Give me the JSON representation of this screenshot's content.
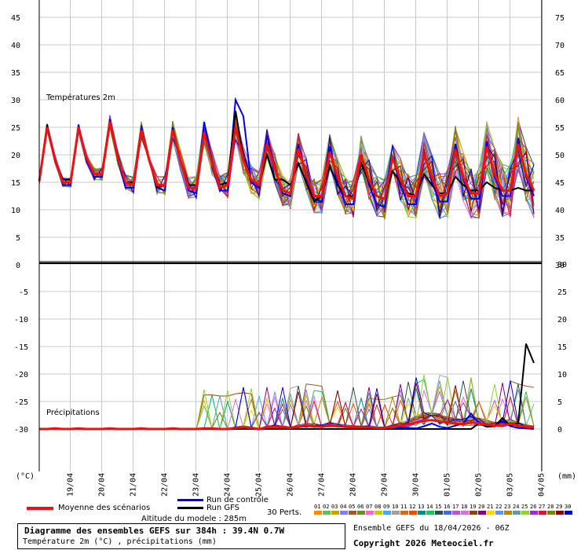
{
  "chart_data": {
    "type": "line",
    "x_dates": [
      "19/04",
      "20/04",
      "21/04",
      "22/04",
      "23/04",
      "24/04",
      "25/04",
      "26/04",
      "27/04",
      "28/04",
      "29/04",
      "30/04",
      "01/05",
      "02/05",
      "03/05",
      "04/05"
    ],
    "step_hours": 6,
    "n_steps": 64,
    "temperature": {
      "title": "Températures 2m",
      "left_ticks": [
        "45",
        "40",
        "35",
        "30",
        "25",
        "20",
        "15",
        "10",
        "5",
        "0"
      ],
      "right_ticks": [
        "75",
        "70",
        "65",
        "60",
        "55",
        "50",
        "45",
        "40",
        "35",
        "30"
      ],
      "ylim": [
        0,
        47
      ],
      "mean": [
        15.2,
        25.0,
        19.2,
        15.0,
        15.0,
        25.0,
        19.5,
        16.5,
        16.5,
        26.0,
        19.5,
        15.0,
        14.5,
        24.5,
        19.0,
        14.5,
        14.5,
        24.5,
        19.0,
        14.0,
        14.0,
        24.0,
        18.5,
        14.0,
        14.5,
        25.0,
        19.0,
        15.5,
        14.5,
        22.0,
        17.5,
        13.5,
        13.0,
        21.0,
        16.5,
        12.5,
        12.5,
        20.5,
        16.0,
        12.5,
        12.0,
        20.0,
        15.5,
        12.5,
        12.0,
        19.5,
        15.5,
        12.5,
        12.5,
        20.0,
        16.0,
        12.5,
        13.0,
        21.0,
        16.0,
        13.0,
        13.0,
        21.5,
        16.5,
        13.5,
        13.5,
        22.0,
        16.5,
        13.5
      ],
      "control": [
        15.2,
        25.5,
        19.5,
        14.5,
        14.5,
        25.5,
        19.0,
        16.0,
        16.0,
        26.5,
        19.0,
        14.0,
        14.0,
        25.0,
        19.0,
        14.0,
        13.5,
        25.0,
        19.0,
        13.5,
        13.0,
        26.0,
        19.0,
        13.5,
        13.5,
        30.0,
        27.0,
        15.0,
        14.0,
        23.5,
        17.5,
        13.0,
        12.5,
        22.0,
        16.0,
        12.0,
        11.5,
        21.5,
        15.0,
        11.0,
        11.0,
        20.0,
        14.5,
        11.0,
        10.5,
        19.5,
        14.5,
        11.0,
        11.0,
        20.5,
        15.0,
        11.5,
        11.5,
        22.0,
        15.5,
        12.0,
        12.0,
        22.5,
        16.0,
        12.5,
        12.5,
        23.0,
        16.0,
        12.5
      ],
      "gfs": [
        15.2,
        25.5,
        19.0,
        15.5,
        15.5,
        25.0,
        19.5,
        16.5,
        16.5,
        26.0,
        20.0,
        15.0,
        15.0,
        24.0,
        19.0,
        14.0,
        14.5,
        24.5,
        19.0,
        14.5,
        14.5,
        24.0,
        18.5,
        14.5,
        15.0,
        28.0,
        19.5,
        15.5,
        14.5,
        20.0,
        15.5,
        15.5,
        14.5,
        18.5,
        15.0,
        11.5,
        12.5,
        18.0,
        14.5,
        12.5,
        12.5,
        18.5,
        15.0,
        12.5,
        12.0,
        17.0,
        15.0,
        13.0,
        12.5,
        16.5,
        14.5,
        13.0,
        13.0,
        16.0,
        14.5,
        13.5,
        13.5,
        15.0,
        14.0,
        13.5,
        13.5,
        14.0,
        13.5,
        13.5
      ]
    },
    "precipitation": {
      "title": "Précipitations",
      "left_ticks": [
        "",
        "-5",
        "-10",
        "-15",
        "-20",
        "-25",
        "-30"
      ],
      "right_ticks": [
        "30",
        "25",
        "20",
        "15",
        "10",
        "5",
        "0"
      ],
      "ylim": [
        0,
        30
      ],
      "mean": [
        0,
        0,
        0.1,
        0,
        0,
        0.1,
        0,
        0,
        0,
        0.1,
        0,
        0,
        0,
        0.1,
        0,
        0,
        0,
        0.1,
        0,
        0,
        0,
        0.1,
        0.1,
        0,
        0,
        0.2,
        0.3,
        0.2,
        0,
        0.3,
        0.4,
        0.3,
        0.2,
        0.4,
        0.6,
        0.5,
        0.4,
        0.6,
        0.5,
        0.4,
        0.3,
        0.3,
        0.3,
        0.2,
        0.2,
        0.4,
        0.6,
        0.8,
        1.2,
        1.5,
        1.6,
        1.4,
        1.2,
        1.0,
        0.9,
        1.2,
        1.0,
        0.8,
        0.6,
        0.7,
        0.9,
        0.6,
        0.4,
        0.3
      ],
      "control": [
        0,
        0,
        0,
        0,
        0,
        0,
        0,
        0,
        0,
        0,
        0,
        0,
        0,
        0,
        0,
        0,
        0,
        0,
        0,
        0,
        0,
        0,
        0,
        0,
        0,
        0,
        0,
        0,
        0,
        0,
        0,
        0,
        0,
        0,
        0,
        0,
        0,
        0,
        0,
        0,
        0,
        0,
        0,
        0,
        0,
        0,
        0.3,
        0.2,
        0.1,
        0.5,
        1.0,
        0.4,
        0.2,
        0.6,
        1.0,
        2.8,
        1.0,
        0.5,
        0.6,
        1.5,
        0.5,
        0.2,
        0.1,
        0
      ],
      "gfs": [
        0,
        0,
        0,
        0,
        0,
        0,
        0,
        0,
        0,
        0,
        0,
        0,
        0,
        0,
        0,
        0,
        0,
        0,
        0,
        0,
        0,
        0,
        0,
        0,
        0,
        0,
        0,
        0,
        0,
        0,
        0,
        0,
        0,
        0,
        0,
        0,
        0,
        0,
        0,
        0,
        0,
        0,
        0,
        0,
        0,
        0,
        0,
        0,
        0,
        0,
        0,
        0,
        0,
        0,
        0,
        0,
        1.0,
        0.4,
        0.5,
        2.0,
        0.6,
        1.0,
        15.5,
        12.0
      ]
    },
    "left_unit": "(°C)",
    "right_unit": "(mm)"
  },
  "legend": {
    "mean_label": "Moyenne des scénarios",
    "control_label": "Run de contrôle",
    "gfs_label": "Run GFS",
    "perts_label": "30 Perts.",
    "altitude": "Altitude du modele : 285m",
    "pert_numbers": [
      "01",
      "02",
      "03",
      "04",
      "05",
      "06",
      "07",
      "08",
      "09",
      "10",
      "11",
      "12",
      "13",
      "14",
      "15",
      "16",
      "17",
      "18",
      "19",
      "20",
      "21",
      "22",
      "23",
      "24",
      "25",
      "26",
      "27",
      "28",
      "29",
      "30"
    ],
    "pert_colors": [
      "#ff8c00",
      "#66bb66",
      "#c8a800",
      "#8080ff",
      "#a05a2c",
      "#6b8e23",
      "#ff66cc",
      "#c8c800",
      "#4aa3ff",
      "#a0a0a0",
      "#d2691e",
      "#ff4500",
      "#008b8b",
      "#20c060",
      "#2f4f4f",
      "#4169e1",
      "#ba55d3",
      "#da70d6",
      "#8b4513",
      "#800080",
      "#ffd700",
      "#6495ed",
      "#b8860b",
      "#5f9ea0",
      "#9acd32",
      "#9932cc",
      "#dc143c",
      "#808000",
      "#8b0000",
      "#0000cd"
    ],
    "mean_color": "#ee1111",
    "control_color": "#0000ee",
    "gfs_color": "#000000"
  },
  "footer": {
    "title": "Diagramme des ensembles GEFS sur 384h : 39.4N 0.7W",
    "subtitle": "Température 2m (°C) , précipitations (mm)",
    "ensemble": "Ensemble GEFS du 18/04/2026 - 06Z",
    "copyright": "Copyright 2026 Meteociel.fr"
  }
}
